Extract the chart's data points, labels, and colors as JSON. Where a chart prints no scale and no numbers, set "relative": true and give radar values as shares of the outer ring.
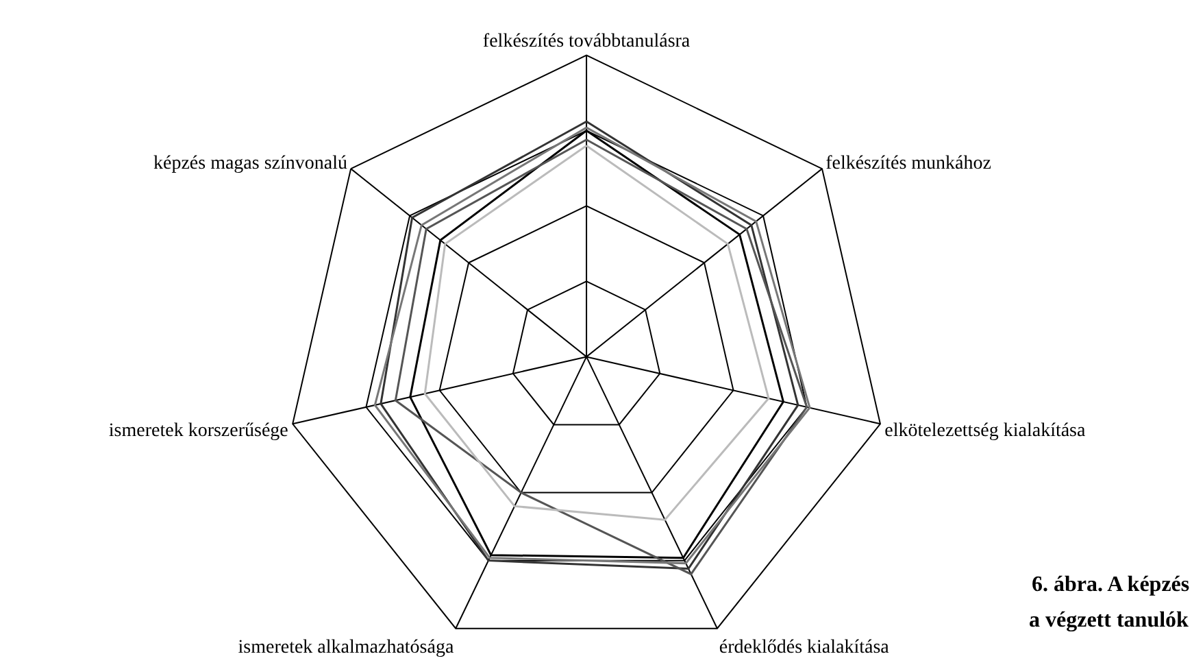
{
  "chart_data": {
    "type": "radar",
    "relative": true,
    "grid": true,
    "categories": [
      "felkészítés továbbtanulásra",
      "felkészítés munkához",
      "elkötelezettség kialakítása",
      "érdeklődés kialakítása",
      "ismeretek alkalmazhatósága",
      "ismeretek korszerűsége",
      "képzés magas színvonalú"
    ],
    "series": [
      {
        "color": "#000000",
        "values": [
          0.75,
          0.65,
          0.67,
          0.74,
          0.73,
          0.6,
          0.62
        ]
      },
      {
        "color": "#333333",
        "values": [
          0.78,
          0.7,
          0.72,
          0.78,
          0.75,
          0.7,
          0.74
        ]
      },
      {
        "color": "#555555",
        "values": [
          0.72,
          0.68,
          0.75,
          0.8,
          0.5,
          0.65,
          0.68
        ]
      },
      {
        "color": "#777777",
        "values": [
          0.76,
          0.72,
          0.76,
          0.76,
          0.74,
          0.72,
          0.7
        ]
      },
      {
        "color": "#bbbbbb",
        "values": [
          0.7,
          0.6,
          0.62,
          0.6,
          0.55,
          0.55,
          0.6
        ]
      }
    ],
    "annotations": [
      "6. ábra. A képzés",
      "a végzett tanulók"
    ]
  }
}
